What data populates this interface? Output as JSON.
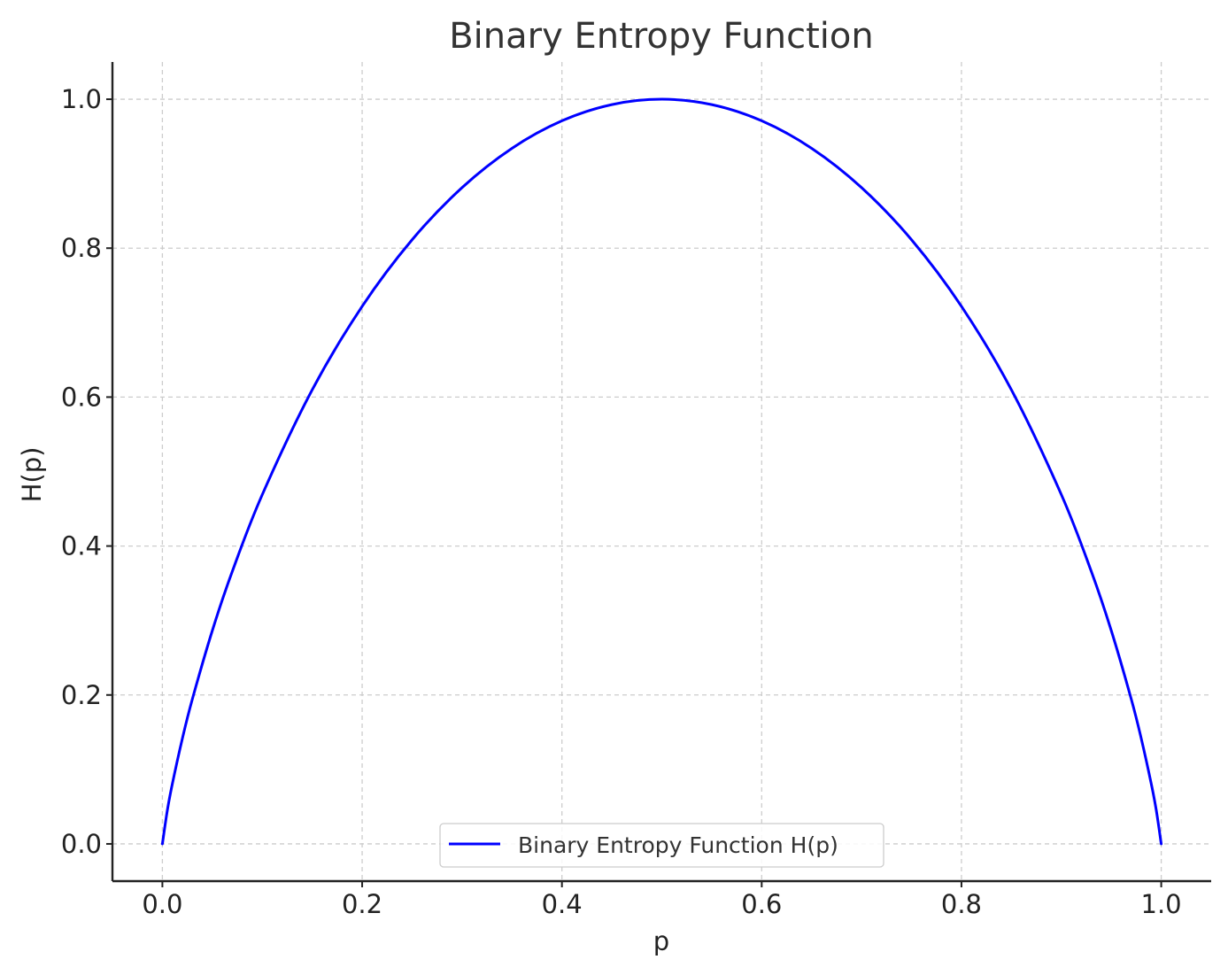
{
  "chart_data": {
    "type": "line",
    "title": "Binary Entropy Function",
    "xlabel": "p",
    "ylabel": "H(p)",
    "xlim": [
      -0.05,
      1.05
    ],
    "ylim": [
      -0.05,
      1.05
    ],
    "xticks": [
      0.0,
      0.2,
      0.4,
      0.6,
      0.8,
      1.0
    ],
    "xtick_labels": [
      "0.0",
      "0.2",
      "0.4",
      "0.6",
      "0.8",
      "1.0"
    ],
    "yticks": [
      0.0,
      0.2,
      0.4,
      0.6,
      0.8,
      1.0
    ],
    "ytick_labels": [
      "0.0",
      "0.2",
      "0.4",
      "0.6",
      "0.8",
      "1.0"
    ],
    "grid": true,
    "legend": {
      "placement": "lower center"
    },
    "series": [
      {
        "name": "Binary Entropy Function H(p)",
        "color": "#0000ff",
        "x": [
          0.0,
          0.005,
          0.01,
          0.02,
          0.03,
          0.05,
          0.07,
          0.1,
          0.15,
          0.2,
          0.25,
          0.3,
          0.35,
          0.4,
          0.45,
          0.5,
          0.55,
          0.6,
          0.65,
          0.7,
          0.75,
          0.8,
          0.85,
          0.9,
          0.93,
          0.95,
          0.97,
          0.98,
          0.99,
          0.995,
          1.0
        ],
        "y": [
          0.0,
          0.0454,
          0.0808,
          0.1414,
          0.1944,
          0.2864,
          0.3659,
          0.469,
          0.6098,
          0.7219,
          0.8113,
          0.8813,
          0.9341,
          0.971,
          0.9928,
          1.0,
          0.9928,
          0.971,
          0.9341,
          0.8813,
          0.8113,
          0.7219,
          0.6098,
          0.469,
          0.3659,
          0.2864,
          0.1944,
          0.1414,
          0.0808,
          0.0454,
          0.0
        ]
      }
    ]
  }
}
